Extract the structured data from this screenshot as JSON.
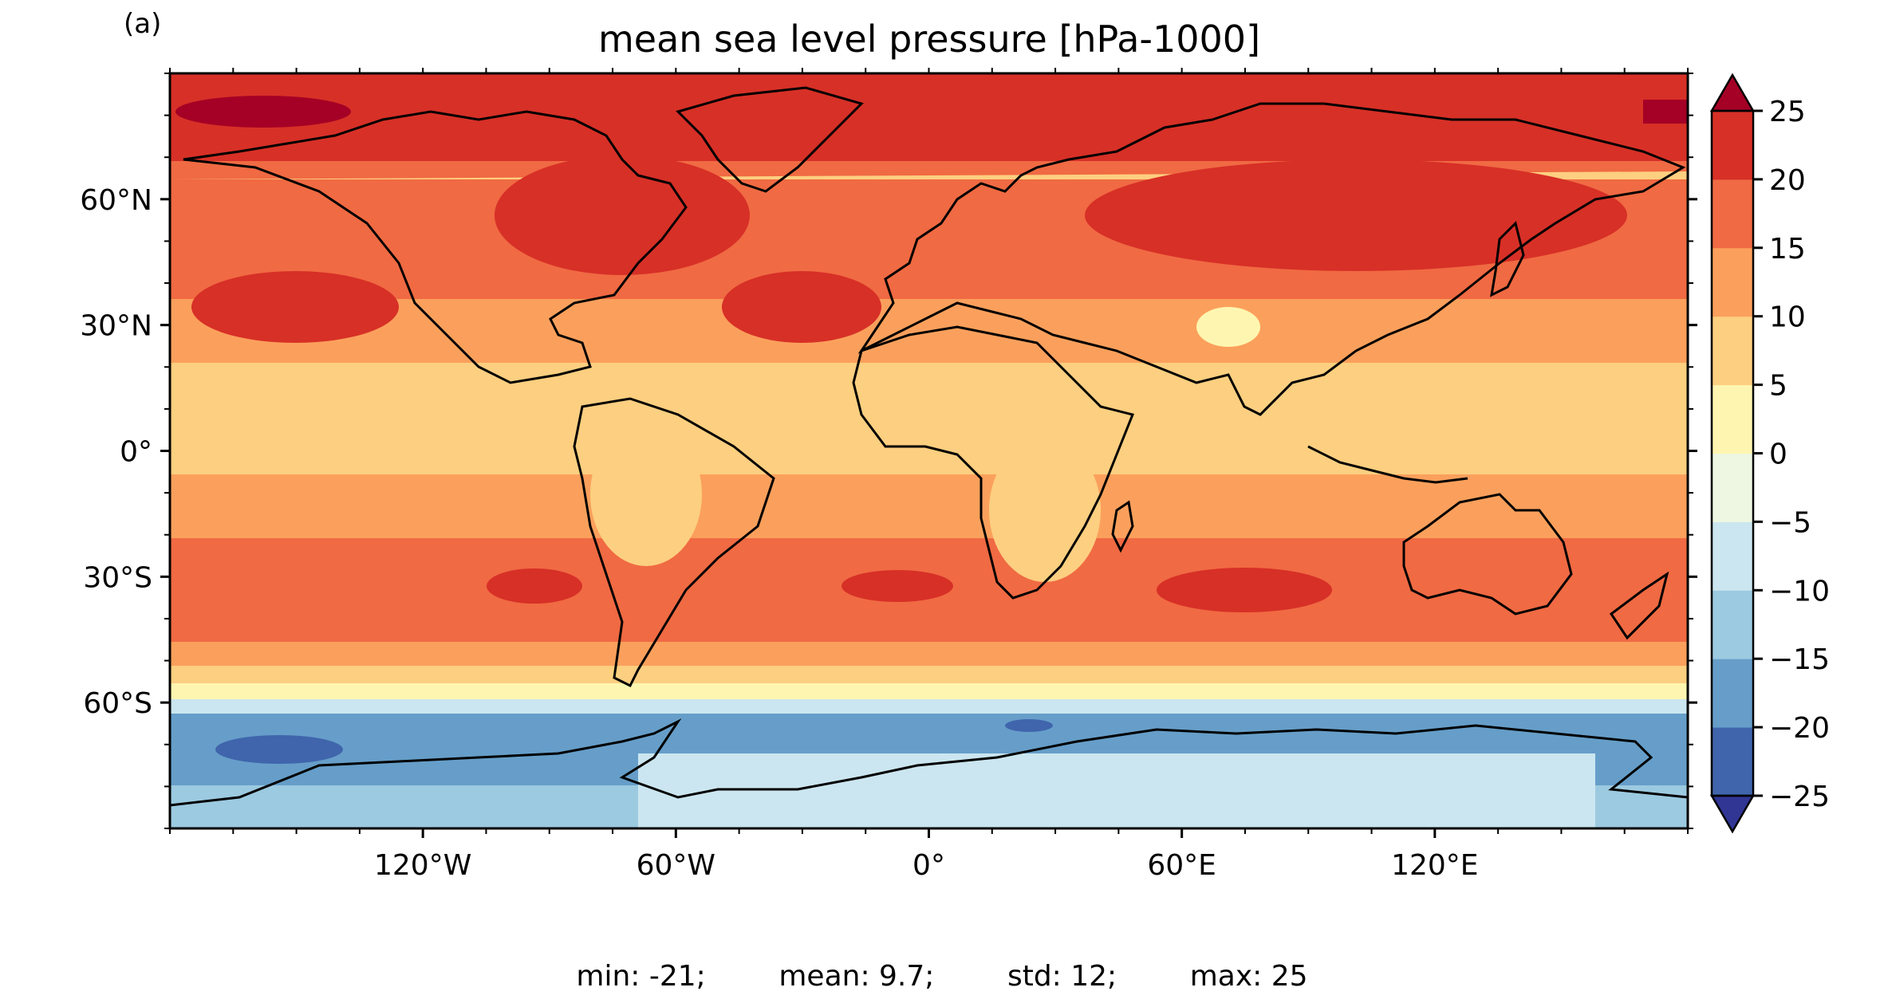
{
  "panel_label": "(a)",
  "title": "mean sea level pressure [hPa-1000]",
  "x_ticks": [
    {
      "label": "120°W",
      "lon": -120
    },
    {
      "label": "60°W",
      "lon": -60
    },
    {
      "label": "0°",
      "lon": 0
    },
    {
      "label": "60°E",
      "lon": 60
    },
    {
      "label": "120°E",
      "lon": 120
    }
  ],
  "y_ticks": [
    {
      "label": "60°N",
      "lat": 60
    },
    {
      "label": "30°N",
      "lat": 30
    },
    {
      "label": "0°",
      "lat": 0
    },
    {
      "label": "30°S",
      "lat": -30
    },
    {
      "label": "60°S",
      "lat": -60
    }
  ],
  "colorbar": {
    "levels": [
      -25,
      -20,
      -15,
      -10,
      -5,
      0,
      5,
      10,
      15,
      20,
      25
    ],
    "tick_labels": [
      "−25",
      "−20",
      "−15",
      "−10",
      "−5",
      "0",
      "5",
      "10",
      "15",
      "20",
      "25"
    ],
    "colors": [
      "#4065ac",
      "#669ec9",
      "#9ccae0",
      "#cbe6f0",
      "#eef7e1",
      "#fef6b0",
      "#fdcf80",
      "#fba05c",
      "#f06a43",
      "#d73027"
    ],
    "under_color": "#313695",
    "over_color": "#a50026",
    "extend": "both"
  },
  "stats": {
    "min": "min: -21;",
    "mean": "mean: 9.7;",
    "std": "std: 12;",
    "max": "max: 25"
  }
}
